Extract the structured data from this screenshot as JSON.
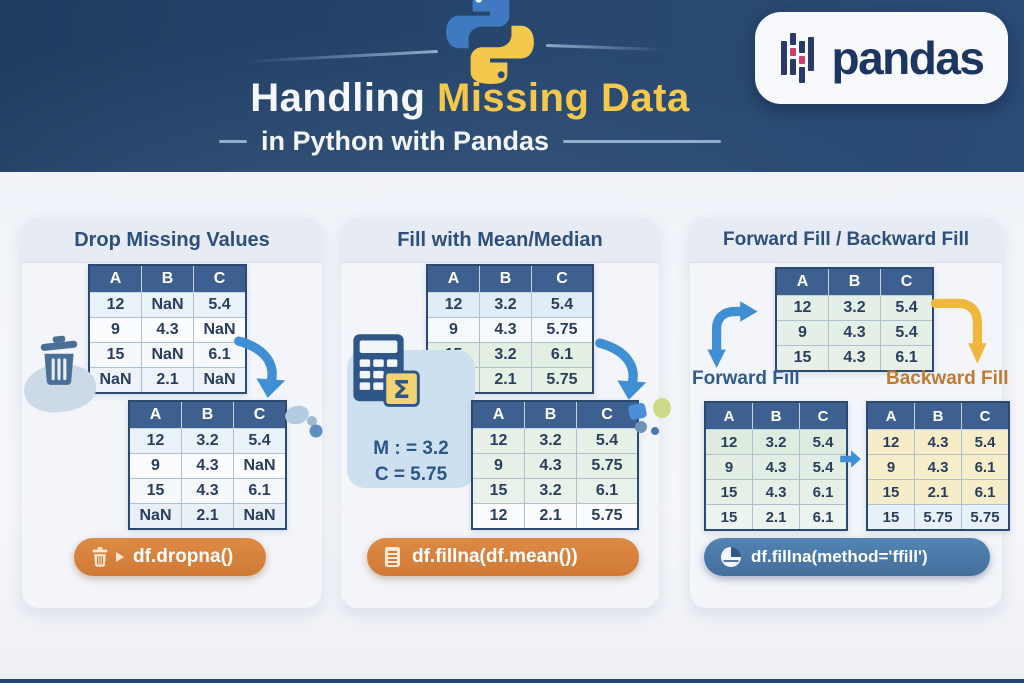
{
  "header": {
    "title_white": "Handling",
    "title_accent": "Missing Data",
    "subtitle": "in Python with Pandas",
    "pandas_wordmark": "pandas",
    "colors": {
      "banner_navy": "#27466e",
      "accent_yellow": "#f3c84b"
    }
  },
  "table_style": {
    "header_bg": "#3d6090"
  },
  "panels": [
    {
      "title": "Drop Missing Values",
      "code_label": "df.dropna()",
      "code_pill_color": "#d9823f",
      "table_before": {
        "headers": [
          "A",
          "B",
          "C"
        ],
        "rows": [
          [
            "12",
            "NaN",
            "5.4"
          ],
          [
            "9",
            "4.3",
            "NaN"
          ],
          [
            "15",
            "NaN",
            "6.1"
          ],
          [
            "NaN",
            "2.1",
            "NaN"
          ]
        ],
        "row_colors": [
          "#e9f1f9",
          "#fafcfe",
          "#f4f8fb",
          "#edf3f9"
        ]
      },
      "table_after": {
        "headers": [
          "A",
          "B",
          "C"
        ],
        "rows": [
          [
            "12",
            "3.2",
            "5.4"
          ],
          [
            "9",
            "4.3",
            "NaN"
          ],
          [
            "15",
            "4.3",
            "6.1"
          ],
          [
            "NaN",
            "2.1",
            "NaN"
          ]
        ],
        "row_colors": [
          "#e9f1f9",
          "#fafcfe",
          "#f4f8fb",
          "#e9f0f7"
        ]
      }
    },
    {
      "title": "Fill with Mean/Median",
      "code_label": "df.fillna(df.mean())",
      "code_pill_color": "#d9823f",
      "callout": {
        "line1": "M : = 3.2",
        "line2": "C = 5.75"
      },
      "table_before": {
        "headers": [
          "A",
          "B",
          "C"
        ],
        "rows": [
          [
            "12",
            "3.2",
            "5.4"
          ],
          [
            "9",
            "4.3",
            "5.75"
          ],
          [
            "15",
            "3.2",
            "6.1"
          ],
          [
            "12",
            "2.1",
            "5.75"
          ]
        ],
        "row_colors": [
          "#e0ecf6",
          "#f6fafc",
          "#e3efe3",
          "#e6f1e6"
        ]
      },
      "table_after": {
        "headers": [
          "A",
          "B",
          "C"
        ],
        "rows": [
          [
            "12",
            "3.2",
            "5.4"
          ],
          [
            "9",
            "4.3",
            "5.75"
          ],
          [
            "15",
            "3.2",
            "6.1"
          ],
          [
            "12",
            "2.1",
            "5.75"
          ]
        ],
        "row_colors": [
          "#e6f0e7",
          "#e6f0e7",
          "#e9f2ea",
          "#fafcfe"
        ]
      }
    },
    {
      "title": "Forward Fill / Backward Fill",
      "code_label": "df.fillna(method='ffill')",
      "code_pill_color": "#4b7dac",
      "forward_label": "Forward Fill",
      "backward_label": "Backward Fill",
      "table_top": {
        "headers": [
          "A",
          "B",
          "C"
        ],
        "rows": [
          [
            "12",
            "3.2",
            "5.4"
          ],
          [
            "9",
            "4.3",
            "5.4"
          ],
          [
            "15",
            "4.3",
            "6.1"
          ]
        ],
        "row_colors": [
          "#e4efe7",
          "#e4efe7",
          "#e7f1e9"
        ]
      },
      "table_forward": {
        "headers": [
          "A",
          "B",
          "C"
        ],
        "rows": [
          [
            "12",
            "3.2",
            "5.4"
          ],
          [
            "9",
            "4.3",
            "5.4"
          ],
          [
            "15",
            "4.3",
            "6.1"
          ],
          [
            "15",
            "2.1",
            "6.1"
          ]
        ],
        "row_colors": [
          "#deecdf",
          "#e2eee3",
          "#e6f0e7",
          "#ecf4f0"
        ]
      },
      "table_backward": {
        "headers": [
          "A",
          "B",
          "C"
        ],
        "rows": [
          [
            "12",
            "4.3",
            "5.4"
          ],
          [
            "9",
            "4.3",
            "6.1"
          ],
          [
            "15",
            "2.1",
            "6.1"
          ],
          [
            "15",
            "5.75",
            "5.75"
          ]
        ],
        "row_colors": [
          "#f6ecc7",
          "#f6edca",
          "#f5ecc9",
          "#e9f1f8"
        ]
      }
    }
  ]
}
